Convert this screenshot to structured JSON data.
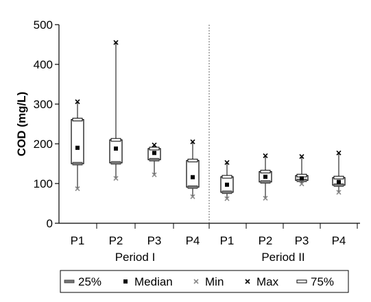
{
  "chart_data": {
    "type": "box",
    "ylabel": "COD (mg/L)",
    "ylim": [
      0,
      500
    ],
    "yticks": [
      0,
      100,
      200,
      300,
      400,
      500
    ],
    "categories": [
      "P1",
      "P2",
      "P3",
      "P4",
      "P1",
      "P2",
      "P3",
      "P4"
    ],
    "groups": [
      {
        "label": "Period I",
        "categories": [
          0,
          1,
          2,
          3
        ]
      },
      {
        "label": "Period II",
        "categories": [
          4,
          5,
          6,
          7
        ]
      }
    ],
    "boxes": [
      {
        "q25": 150,
        "median": 190,
        "min": 87,
        "max": 306,
        "q75": 261
      },
      {
        "q25": 152,
        "median": 188,
        "min": 113,
        "max": 455,
        "q75": 210
      },
      {
        "q25": 160,
        "median": 177,
        "min": 122,
        "max": 197,
        "q75": 188
      },
      {
        "q25": 91,
        "median": 116,
        "min": 67,
        "max": 205,
        "q75": 158
      },
      {
        "q25": 78,
        "median": 97,
        "min": 62,
        "max": 153,
        "q75": 117
      },
      {
        "q25": 104,
        "median": 117,
        "min": 63,
        "max": 170,
        "q75": 130
      },
      {
        "q25": 108,
        "median": 113,
        "min": 99,
        "max": 168,
        "q75": 120
      },
      {
        "q25": 96,
        "median": 104,
        "min": 78,
        "max": 177,
        "q75": 115
      }
    ],
    "legend": {
      "position": "bottom",
      "items": [
        {
          "key": "q25",
          "label": "25%"
        },
        {
          "key": "median",
          "label": "Median"
        },
        {
          "key": "min",
          "label": "Min"
        },
        {
          "key": "max",
          "label": "Max"
        },
        {
          "key": "q75",
          "label": "75%"
        }
      ]
    },
    "divider": "dotted line between Period I and Period II",
    "grid": false
  }
}
